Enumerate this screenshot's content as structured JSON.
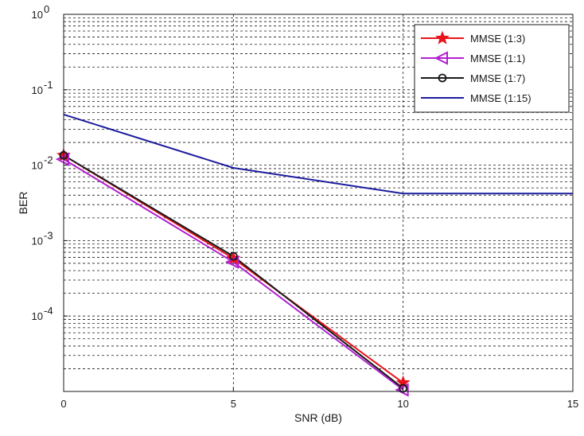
{
  "chart_data": {
    "type": "line",
    "xlabel": "SNR (dB)",
    "ylabel": "BER",
    "xlim": [
      0,
      15
    ],
    "ylim": [
      1e-05,
      1
    ],
    "yscale": "log",
    "grid": true,
    "x_ticks": [
      0,
      5,
      10,
      15
    ],
    "y_ticks": [
      1,
      0.1,
      0.01,
      0.001,
      0.0001
    ],
    "y_tick_labels": [
      {
        "base": "10",
        "exp": "0"
      },
      {
        "base": "10",
        "exp": "-1"
      },
      {
        "base": "10",
        "exp": "-2"
      },
      {
        "base": "10",
        "exp": "-3"
      },
      {
        "base": "10",
        "exp": "-4"
      }
    ],
    "legend_position": "top-right",
    "series": [
      {
        "name": "MMSE (1:3)",
        "color": "#e8141b",
        "marker": "star",
        "x": [
          0,
          5,
          10
        ],
        "y": [
          0.0135,
          0.00058,
          1.3e-05
        ]
      },
      {
        "name": "MMSE (1:1)",
        "color": "#b21fd0",
        "marker": "triangle-left",
        "x": [
          0,
          5,
          10
        ],
        "y": [
          0.012,
          0.00052,
          1.05e-05
        ]
      },
      {
        "name": "MMSE (1:7)",
        "color": "#1a1a1a",
        "marker": "circle",
        "x": [
          0,
          5,
          10
        ],
        "y": [
          0.0135,
          0.00062,
          1.1e-05
        ]
      },
      {
        "name": "MMSE (1:15)",
        "color": "#1c1c9e",
        "marker": "none",
        "x": [
          0,
          5,
          10,
          15
        ],
        "y": [
          0.047,
          0.0092,
          0.0042,
          0.0042
        ]
      }
    ]
  }
}
